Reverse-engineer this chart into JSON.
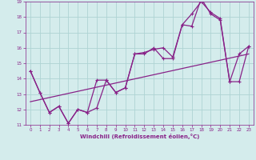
{
  "xlabel": "Windchill (Refroidissement éolien,°C)",
  "background_color": "#d4ecec",
  "grid_color": "#aed4d4",
  "line_color": "#882288",
  "xlim": [
    -0.5,
    23.5
  ],
  "ylim": [
    11,
    19
  ],
  "xticks": [
    0,
    1,
    2,
    3,
    4,
    5,
    6,
    7,
    8,
    9,
    10,
    11,
    12,
    13,
    14,
    15,
    16,
    17,
    18,
    19,
    20,
    21,
    22,
    23
  ],
  "yticks": [
    11,
    12,
    13,
    14,
    15,
    16,
    17,
    18,
    19
  ],
  "line1_x": [
    0,
    1,
    2,
    3,
    4,
    5,
    6,
    7,
    8,
    9,
    10,
    11,
    12,
    13,
    14,
    15,
    16,
    17,
    18,
    19,
    20,
    21,
    22,
    23
  ],
  "line1_y": [
    14.5,
    13.1,
    11.8,
    12.2,
    11.1,
    12.0,
    11.8,
    13.9,
    13.9,
    13.1,
    13.4,
    15.6,
    15.6,
    16.0,
    15.3,
    15.3,
    17.5,
    18.2,
    19.0,
    18.3,
    17.9,
    13.8,
    15.6,
    16.1
  ],
  "line2_x": [
    0,
    1,
    2,
    3,
    4,
    5,
    6,
    7,
    8,
    9,
    10,
    11,
    12,
    13,
    14,
    15,
    16,
    17,
    18,
    19,
    20,
    21,
    22,
    23
  ],
  "line2_y": [
    14.5,
    13.1,
    11.8,
    12.2,
    11.1,
    12.0,
    11.8,
    12.1,
    13.9,
    13.1,
    13.4,
    15.6,
    15.7,
    15.9,
    16.0,
    15.4,
    17.5,
    17.4,
    19.2,
    18.2,
    17.8,
    13.8,
    13.8,
    16.1
  ],
  "line3_x": [
    0,
    23
  ],
  "line3_y": [
    12.5,
    15.6
  ]
}
